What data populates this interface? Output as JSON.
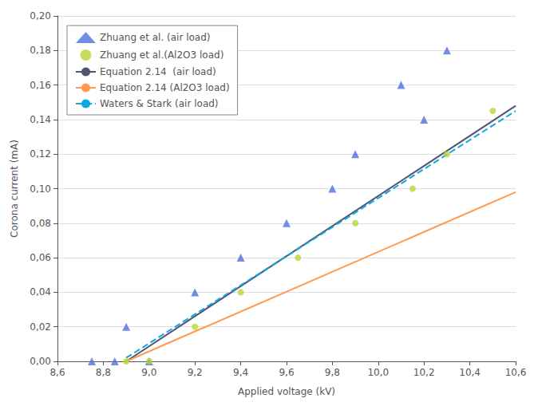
{
  "chart_data": {
    "type": "scatter",
    "xlabel": "Applied voltage (kV)",
    "ylabel": "Corona current (mA)",
    "xlim": [
      8.6,
      10.6
    ],
    "ylim": [
      0.0,
      0.2
    ],
    "xticks": [
      {
        "value": 8.6,
        "label": "8,6"
      },
      {
        "value": 8.8,
        "label": "8,8"
      },
      {
        "value": 9.0,
        "label": "9,0"
      },
      {
        "value": 9.2,
        "label": "9,2"
      },
      {
        "value": 9.4,
        "label": "9,4"
      },
      {
        "value": 9.6,
        "label": "9,6"
      },
      {
        "value": 9.8,
        "label": "9,8"
      },
      {
        "value": 10.0,
        "label": "10,0"
      },
      {
        "value": 10.2,
        "label": "10,2"
      },
      {
        "value": 10.4,
        "label": "10,4"
      },
      {
        "value": 10.6,
        "label": "10,6"
      }
    ],
    "yticks": [
      {
        "value": 0.0,
        "label": "0,00"
      },
      {
        "value": 0.02,
        "label": "0,02"
      },
      {
        "value": 0.04,
        "label": "0,04"
      },
      {
        "value": 0.06,
        "label": "0,06"
      },
      {
        "value": 0.08,
        "label": "0,08"
      },
      {
        "value": 0.1,
        "label": "0,10"
      },
      {
        "value": 0.12,
        "label": "0,12"
      },
      {
        "value": 0.14,
        "label": "0,14"
      },
      {
        "value": 0.16,
        "label": "0,16"
      },
      {
        "value": 0.18,
        "label": "0,18"
      },
      {
        "value": 0.2,
        "label": "0,20"
      }
    ],
    "grid": "y",
    "legend": "upper left",
    "series": [
      {
        "name": "Zhuang et al. (air load)",
        "type": "scatter",
        "marker": "triangle",
        "x": [
          8.75,
          8.85,
          8.9,
          9.0,
          9.2,
          9.4,
          9.6,
          9.8,
          9.9,
          10.1,
          10.2,
          10.3
        ],
        "values": [
          0.0,
          0.0,
          0.02,
          0.0,
          0.04,
          0.06,
          0.08,
          0.1,
          0.12,
          0.16,
          0.14,
          0.18
        ]
      },
      {
        "name": "Zhuang et al.(Al2O3 load)",
        "type": "scatter",
        "marker": "circle",
        "x": [
          8.9,
          9.0,
          9.2,
          9.4,
          9.65,
          9.9,
          10.15,
          10.3,
          10.5
        ],
        "values": [
          0.0,
          0.0,
          0.02,
          0.04,
          0.06,
          0.08,
          0.1,
          0.12,
          0.145
        ]
      },
      {
        "name": "Equation 2.14  (air load)",
        "type": "line",
        "line_style": "solid",
        "x": [
          8.9,
          10.6
        ],
        "values": [
          0.0,
          0.148
        ]
      },
      {
        "name": "Equation 2.14 (Al2O3 load)",
        "type": "line",
        "line_style": "solid",
        "x": [
          8.9,
          10.6
        ],
        "values": [
          0.0,
          0.098
        ]
      },
      {
        "name": "Waters & Stark (air load)",
        "type": "line",
        "line_style": "dashed",
        "x": [
          8.9,
          10.6
        ],
        "values": [
          0.002,
          0.145
        ]
      }
    ]
  }
}
